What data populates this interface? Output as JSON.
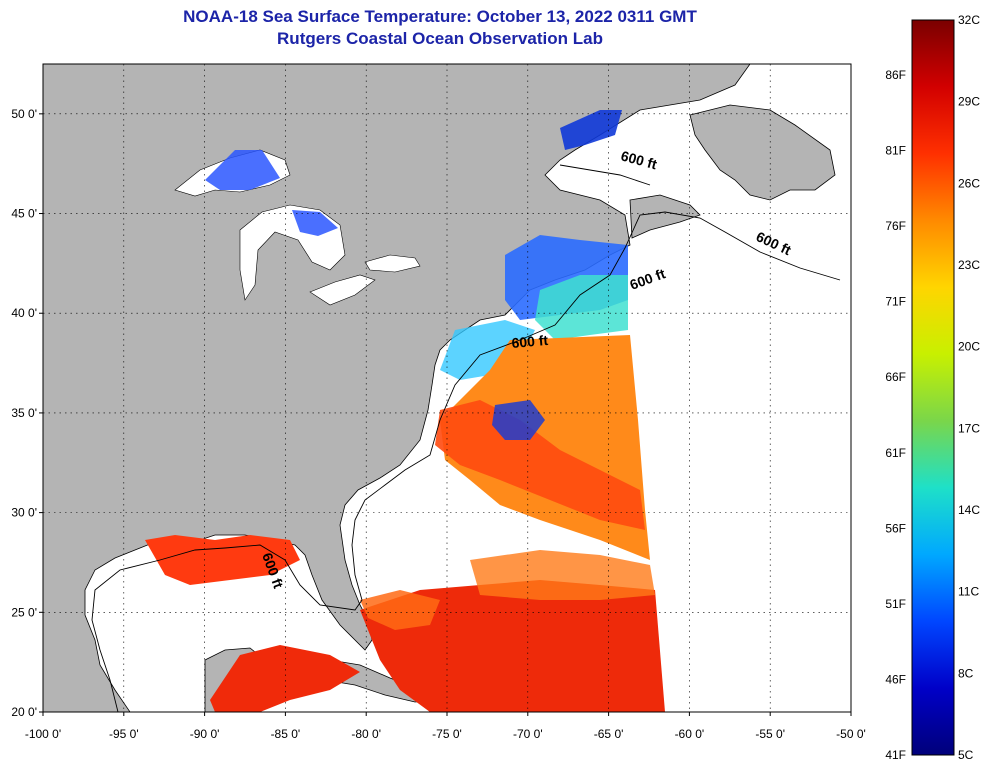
{
  "header": {
    "title_line1": "NOAA-18 Sea Surface Temperature:  October 13, 2022 0311 GMT",
    "title_line2": "Rutgers Coastal Ocean Observation Lab"
  },
  "map": {
    "lon_range": [
      -100,
      -50
    ],
    "lat_range": [
      20,
      52.5
    ],
    "lat_ticks": [
      {
        "value": 20,
        "label": "20 0'"
      },
      {
        "value": 25,
        "label": "25 0'"
      },
      {
        "value": 30,
        "label": "30 0'"
      },
      {
        "value": 35,
        "label": "35 0'"
      },
      {
        "value": 40,
        "label": "40 0'"
      },
      {
        "value": 45,
        "label": "45 0'"
      },
      {
        "value": 50,
        "label": "50 0'"
      }
    ],
    "lon_ticks": [
      {
        "value": -100,
        "label": "-100 0'"
      },
      {
        "value": -95,
        "label": "-95 0'"
      },
      {
        "value": -90,
        "label": "-90 0'"
      },
      {
        "value": -85,
        "label": "-85 0'"
      },
      {
        "value": -80,
        "label": "-80 0'"
      },
      {
        "value": -75,
        "label": "-75 0'"
      },
      {
        "value": -70,
        "label": "-70 0'"
      },
      {
        "value": -65,
        "label": "-65 0'"
      },
      {
        "value": -60,
        "label": "-60 0'"
      },
      {
        "value": -55,
        "label": "-55 0'"
      },
      {
        "value": -50,
        "label": "-50 0'"
      }
    ],
    "contour_label": "600 ft",
    "land_color": "#b4b4b4",
    "no_data_color": "#ffffff",
    "grid": true
  },
  "colorbar": {
    "fahrenheit_labels": [
      "86F",
      "81F",
      "76F",
      "71F",
      "66F",
      "61F",
      "56F",
      "51F",
      "46F",
      "41F"
    ],
    "celsius_labels": [
      "32C",
      "29C",
      "26C",
      "23C",
      "20C",
      "17C",
      "14C",
      "11C",
      "8C",
      "5C"
    ],
    "colors": [
      "#7a0000",
      "#d20000",
      "#ff3000",
      "#ff8a00",
      "#ffd500",
      "#c8f000",
      "#7ad64a",
      "#1ee0c8",
      "#00a8ff",
      "#0046ff",
      "#0000c8",
      "#00007a"
    ]
  }
}
